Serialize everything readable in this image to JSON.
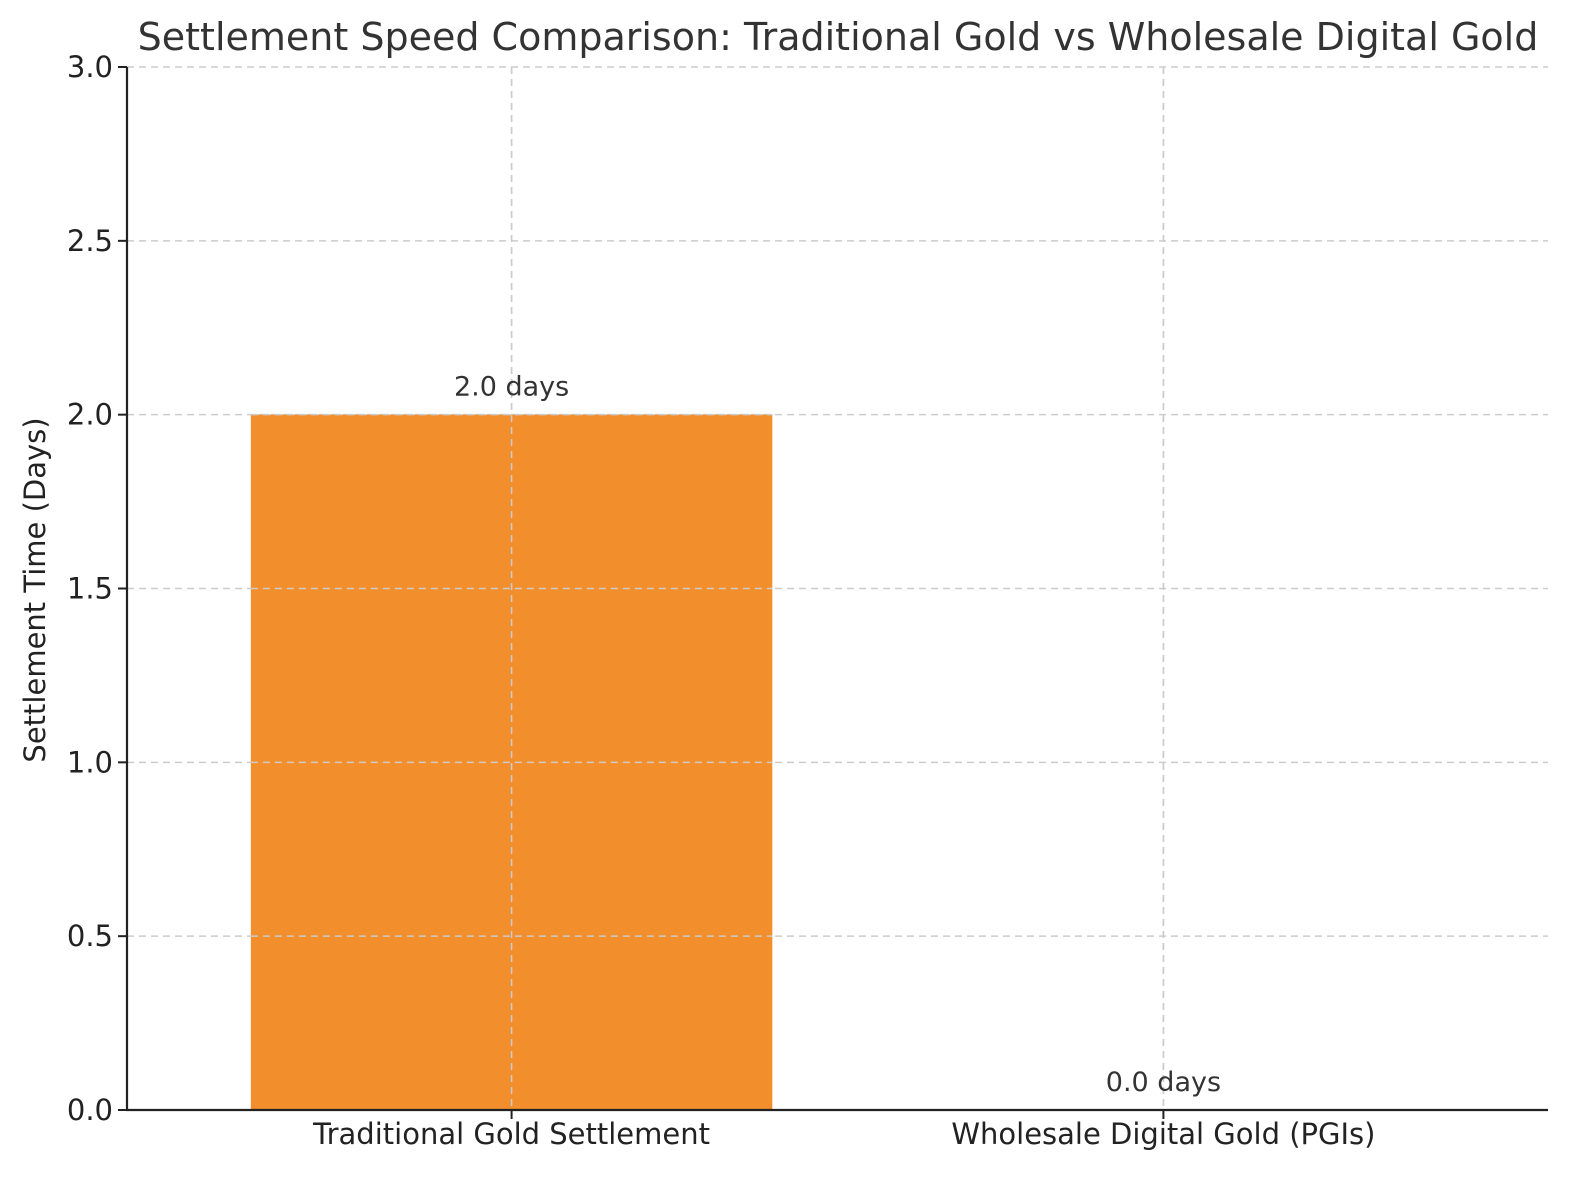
{
  "chart_data": {
    "type": "bar",
    "title": "Settlement Speed Comparison: Traditional Gold vs Wholesale Digital Gold",
    "xlabel": "",
    "ylabel": "Settlement Time (Days)",
    "categories": [
      "Traditional Gold Settlement",
      "Wholesale Digital Gold (PGIs)"
    ],
    "values": [
      2.0,
      0.0
    ],
    "data_labels": [
      "2.0 days",
      "0.0 days"
    ],
    "ylim": [
      0,
      3.0
    ],
    "yticks": [
      "0.0",
      "0.5",
      "1.0",
      "1.5",
      "2.0",
      "2.5",
      "3.0"
    ],
    "grid": true,
    "bar_color": "#f28e2b"
  }
}
